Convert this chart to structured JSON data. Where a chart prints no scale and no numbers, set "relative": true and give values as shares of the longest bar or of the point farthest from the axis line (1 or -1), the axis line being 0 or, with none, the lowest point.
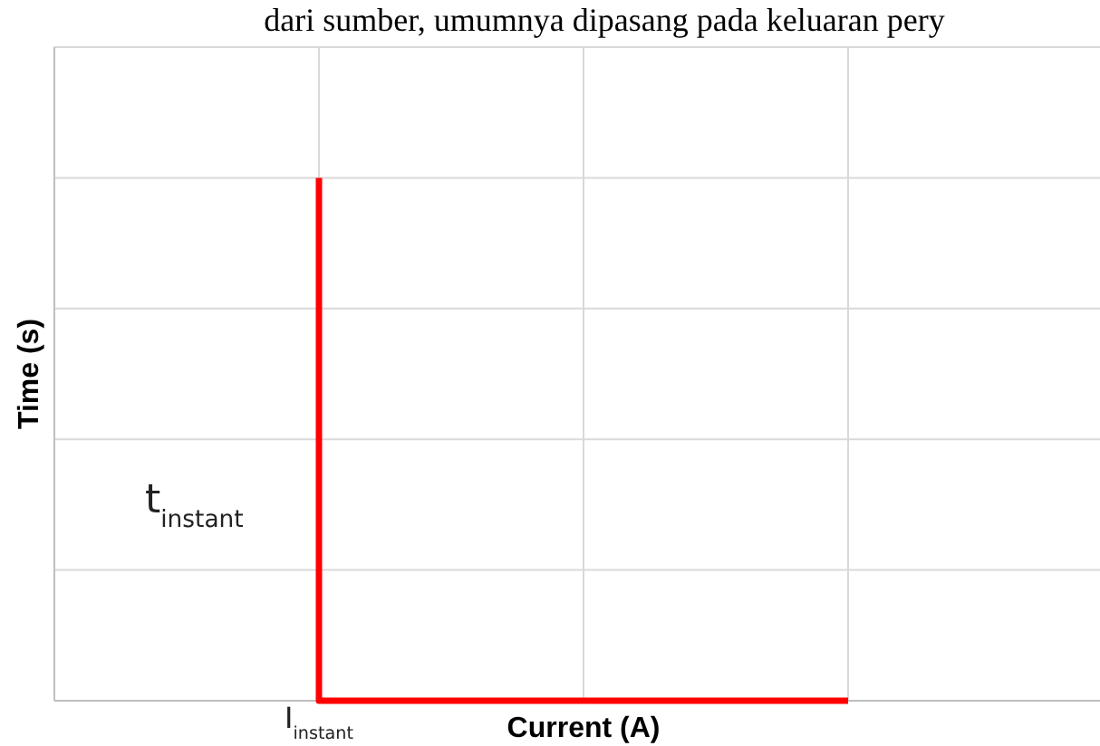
{
  "chart_data": {
    "type": "step",
    "relative": true,
    "xlabel": "Current (A)",
    "ylabel": "Time (s)",
    "categories": [
      null,
      null,
      null,
      null,
      null
    ],
    "grid": true,
    "line_style": "solid",
    "series": [
      {
        "color": "#ff0000",
        "values": [
          null,
          1,
          0,
          0,
          null
        ]
      }
    ],
    "annotations": [
      "dari sumber, umumnya dipasang pada keluaran pery",
      "t$_{instant}$",
      "I$_{instant}$"
    ]
  }
}
